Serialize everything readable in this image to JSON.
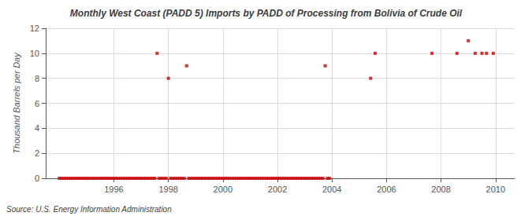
{
  "chart_data": {
    "type": "scatter",
    "title": "Monthly West Coast (PADD 5) Imports by PADD of Processing from Bolivia of Crude Oil",
    "ylabel": "Thousand Barrels per Day",
    "annotations": [
      "Source: U.S. Energy Information Administration"
    ],
    "color": "#cc0000",
    "marker": "square",
    "grid": true,
    "xlim": [
      1993.5,
      2010.7
    ],
    "ylim": [
      0,
      12
    ],
    "xticks": [
      1996,
      1998,
      2000,
      2002,
      2004,
      2006,
      2008,
      2010
    ],
    "yticks": [
      0,
      2,
      4,
      6,
      8,
      10,
      12
    ],
    "x": [
      1994.0,
      1994.083,
      1994.167,
      1994.25,
      1994.333,
      1994.417,
      1994.5,
      1994.583,
      1994.667,
      1994.75,
      1994.833,
      1994.917,
      1995.0,
      1995.083,
      1995.167,
      1995.25,
      1995.333,
      1995.417,
      1995.5,
      1995.583,
      1995.667,
      1995.75,
      1995.833,
      1995.917,
      1996.0,
      1996.083,
      1996.167,
      1996.25,
      1996.333,
      1996.417,
      1996.5,
      1996.583,
      1996.667,
      1996.75,
      1996.833,
      1996.917,
      1997.0,
      1997.083,
      1997.167,
      1997.25,
      1997.333,
      1997.417,
      1997.5,
      1997.583,
      1997.667,
      1997.75,
      1997.833,
      1997.917,
      1998.0,
      1998.083,
      1998.167,
      1998.25,
      1998.333,
      1998.417,
      1998.5,
      1998.583,
      1998.667,
      1998.75,
      1998.833,
      1998.917,
      1999.0,
      1999.083,
      1999.167,
      1999.25,
      1999.333,
      1999.417,
      1999.5,
      1999.583,
      1999.667,
      1999.75,
      1999.833,
      1999.917,
      2000.0,
      2000.083,
      2000.167,
      2000.25,
      2000.333,
      2000.417,
      2000.5,
      2000.583,
      2000.667,
      2000.75,
      2000.833,
      2000.917,
      2001.0,
      2001.083,
      2001.167,
      2001.25,
      2001.333,
      2001.417,
      2001.5,
      2001.583,
      2001.667,
      2001.75,
      2001.833,
      2001.917,
      2002.0,
      2002.083,
      2002.167,
      2002.25,
      2002.333,
      2002.417,
      2002.5,
      2002.583,
      2002.667,
      2002.75,
      2002.833,
      2002.917,
      2003.0,
      2003.083,
      2003.167,
      2003.25,
      2003.333,
      2003.417,
      2003.5,
      2003.583,
      2003.667,
      2003.75,
      2003.833,
      2003.917,
      2005.417,
      2005.583,
      2007.667,
      2008.583,
      2009.0,
      2009.25,
      2009.5,
      2009.667,
      2009.917
    ],
    "values": [
      0,
      0,
      0,
      0,
      0,
      0,
      0,
      0,
      0,
      0,
      0,
      0,
      0,
      0,
      0,
      0,
      0,
      0,
      0,
      0,
      0,
      0,
      0,
      0,
      0,
      0,
      0,
      0,
      0,
      0,
      0,
      0,
      0,
      0,
      0,
      0,
      0,
      0,
      0,
      0,
      0,
      0,
      0,
      10,
      0,
      0,
      0,
      0,
      8,
      0,
      0,
      0,
      0,
      0,
      0,
      0,
      9,
      0,
      0,
      0,
      0,
      0,
      0,
      0,
      0,
      0,
      0,
      0,
      0,
      0,
      0,
      0,
      0,
      0,
      0,
      0,
      0,
      0,
      0,
      0,
      0,
      0,
      0,
      0,
      0,
      0,
      0,
      0,
      0,
      0,
      0,
      0,
      0,
      0,
      0,
      0,
      0,
      0,
      0,
      0,
      0,
      0,
      0,
      0,
      0,
      0,
      0,
      0,
      0,
      0,
      0,
      0,
      0,
      0,
      0,
      0,
      0,
      9,
      0,
      0,
      8,
      10,
      10,
      10,
      11,
      10,
      10,
      10,
      10
    ]
  }
}
